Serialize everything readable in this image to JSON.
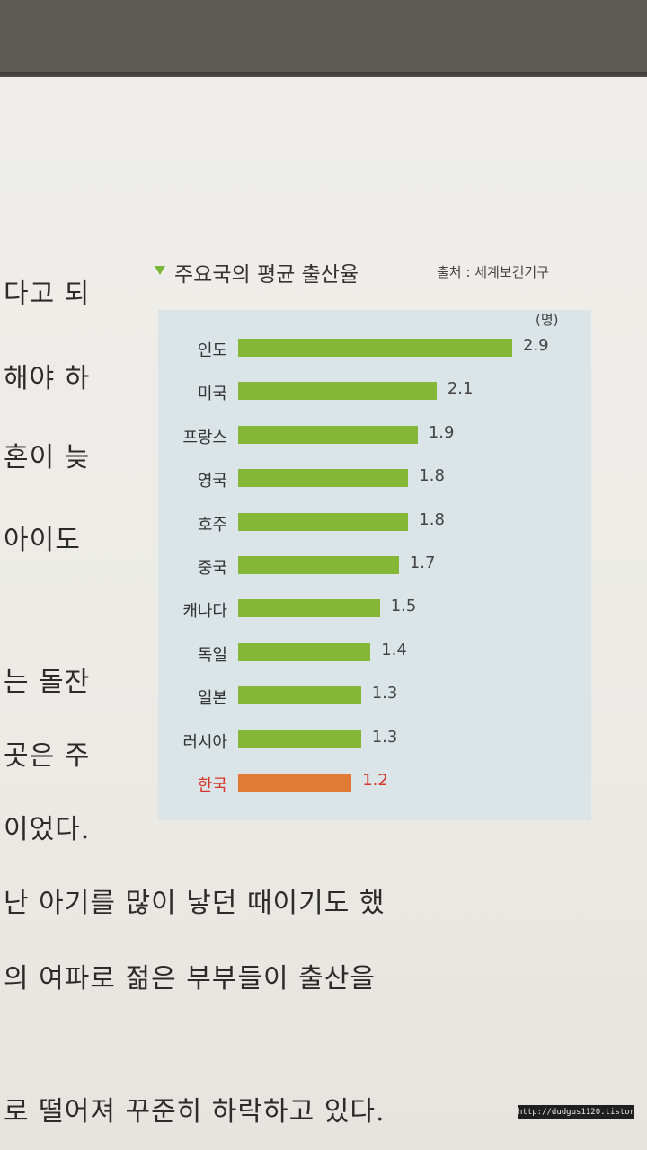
{
  "body_text": [
    "다고 되",
    "해야 하",
    "혼이 늦",
    "아이도",
    "는 돌잔",
    "곳은 주",
    "이었다.",
    "난 아기를 많이 낳던 때이기도 했",
    "의 여파로 젊은 부부들이 출산을",
    "로 떨어져 꾸준히 하락하고 있다."
  ],
  "colors": {
    "bar": "#83b735",
    "highlight_bar": "#e07a35",
    "highlight_text": "#d6352b"
  },
  "chart_data": {
    "type": "bar",
    "orientation": "horizontal",
    "title": "주요국의 평균 출산율",
    "source": "출처 : 세계보건기구",
    "unit": "(명)",
    "categories": [
      "인도",
      "미국",
      "프랑스",
      "영국",
      "호주",
      "중국",
      "캐나다",
      "독일",
      "일본",
      "러시아",
      "한국"
    ],
    "values": [
      2.9,
      2.1,
      1.9,
      1.8,
      1.8,
      1.7,
      1.5,
      1.4,
      1.3,
      1.3,
      1.2
    ],
    "value_labels": [
      "2.9",
      "2.1",
      "1.9",
      "1.8",
      "1.8",
      "1.7",
      "1.5",
      "1.4",
      "1.3",
      "1.3",
      "1.2"
    ],
    "highlight": "한국",
    "xlim": [
      0,
      2.9
    ],
    "grid": false
  },
  "watermark": "http://dudgus1120.tistory.com"
}
